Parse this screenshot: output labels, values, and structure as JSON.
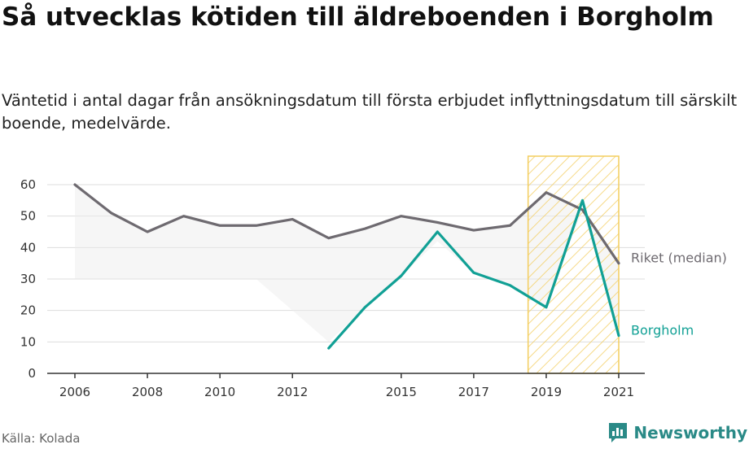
{
  "header": {
    "title": "Så utvecklas kötiden till äldreboenden i Borgholm",
    "subtitle": "Väntetid i antal dagar från ansökningsdatum till första erbjudet inflyttningsdatum till särskilt boende, medelvärde."
  },
  "footer": {
    "source": "Källa: Kolada",
    "brand": "Newsworthy",
    "brand_icon": "newsworthy-logo-icon"
  },
  "colors": {
    "riket": "#6e6a70",
    "borgholm": "#11a095",
    "band_fill": "#ececec",
    "highlight_stroke": "#f3cd5e",
    "grid": "#dddddd",
    "axis": "#333333"
  },
  "chart_data": {
    "type": "line",
    "x": [
      2006,
      2007,
      2008,
      2009,
      2010,
      2011,
      2012,
      2013,
      2014,
      2015,
      2016,
      2017,
      2018,
      2019,
      2020,
      2021
    ],
    "series": [
      {
        "name": "Riket (median)",
        "values": [
          60,
          51,
          45,
          50,
          47,
          47,
          49,
          43,
          46,
          50,
          48,
          45.5,
          47,
          57.5,
          52,
          35
        ]
      },
      {
        "name": "Borgholm",
        "values": [
          null,
          null,
          null,
          null,
          null,
          null,
          null,
          8,
          21,
          31,
          45,
          32,
          28,
          21,
          55,
          12
        ]
      }
    ],
    "band_lower": [
      30,
      30,
      30,
      30,
      30,
      30,
      20,
      10,
      21,
      31,
      42,
      32,
      28,
      21,
      52,
      12
    ],
    "yticks": [
      0,
      10,
      20,
      30,
      40,
      50,
      60
    ],
    "xticks": [
      2006,
      2008,
      2010,
      2012,
      2015,
      2017,
      2019,
      2021
    ],
    "ylim": [
      0,
      60
    ],
    "grid": true,
    "highlight_range": [
      2018.5,
      2021
    ]
  }
}
